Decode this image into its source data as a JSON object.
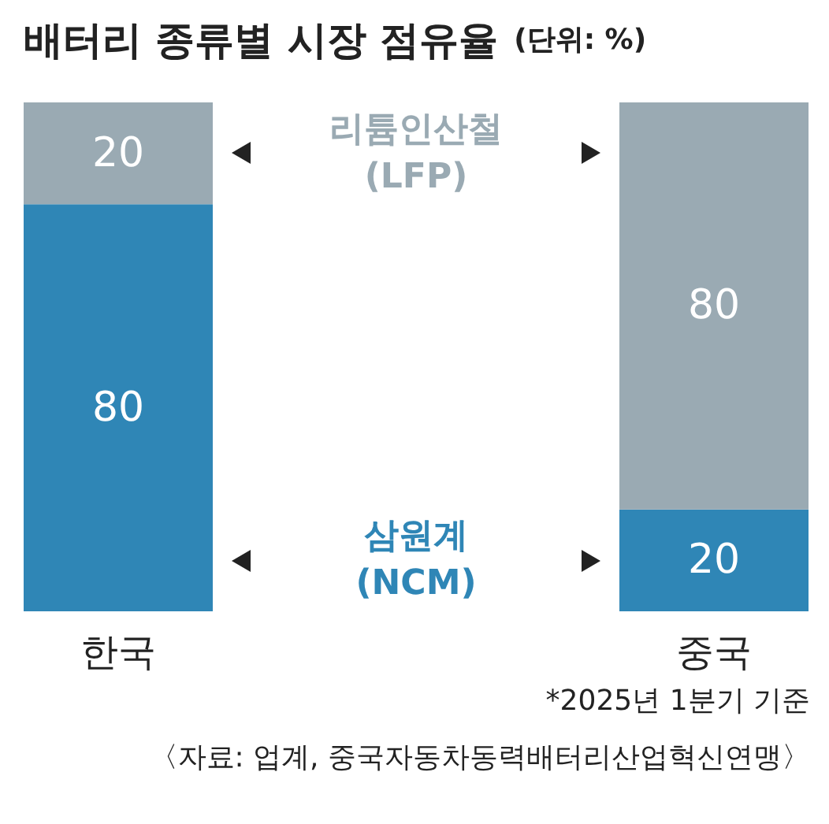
{
  "chart_data": {
    "type": "bar",
    "title": "배터리 종류별 시장 점유율",
    "subtitle": "(단위: %)",
    "categories": [
      "한국",
      "중국"
    ],
    "stacked": true,
    "data_labels": true,
    "series": [
      {
        "name": "삼원계\n(NCM)",
        "color": "#2f86b6",
        "values": [
          80,
          20
        ]
      },
      {
        "name": "리튬인산철\n(LFP)",
        "color": "#9aaab3",
        "values": [
          20,
          80
        ]
      }
    ],
    "annotations": [
      "*2025년 1분기 기준",
      "〈자료: 업계, 중국자동차동력배터리산업혁신연맹〉"
    ]
  }
}
